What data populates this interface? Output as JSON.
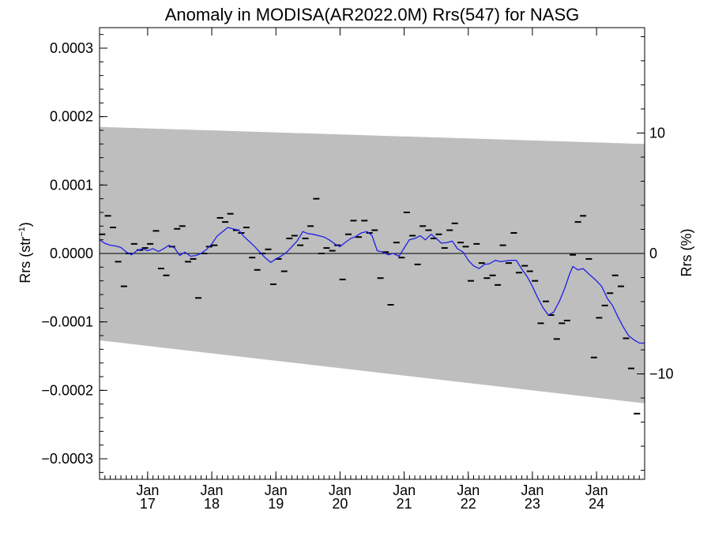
{
  "chart_data": {
    "type": "scatter",
    "title": "Anomaly in MODISA(AR2022.0M) Rrs(547) for NASG",
    "ylabel_left": "Rrs (str",
    "ylabel_left_sup": "−1",
    "ylabel_left_close": ")",
    "ylabel_right": "Rrs (%)",
    "xlim": [
      2016.25,
      2024.75
    ],
    "ylim": [
      -0.00033,
      0.00033
    ],
    "y2lim": [
      -18.75,
      18.75
    ],
    "grid": false,
    "x_ticks": [
      {
        "value": 2017.0,
        "month": "Jan",
        "year": "17"
      },
      {
        "value": 2018.0,
        "month": "Jan",
        "year": "18"
      },
      {
        "value": 2019.0,
        "month": "Jan",
        "year": "19"
      },
      {
        "value": 2020.0,
        "month": "Jan",
        "year": "20"
      },
      {
        "value": 2021.0,
        "month": "Jan",
        "year": "21"
      },
      {
        "value": 2022.0,
        "month": "Jan",
        "year": "22"
      },
      {
        "value": 2023.0,
        "month": "Jan",
        "year": "23"
      },
      {
        "value": 2024.0,
        "month": "Jan",
        "year": "24"
      }
    ],
    "y_ticks": [
      {
        "value": 0.0003,
        "label": "0.0003"
      },
      {
        "value": 0.0002,
        "label": "0.0002"
      },
      {
        "value": 0.0001,
        "label": "0.0001"
      },
      {
        "value": 0.0,
        "label": "0.0000"
      },
      {
        "value": -0.0001,
        "label": "−0.0001"
      },
      {
        "value": -0.0002,
        "label": "−0.0002"
      },
      {
        "value": -0.0003,
        "label": "−0.0003"
      }
    ],
    "y2_ticks": [
      {
        "value": 10,
        "label": "10"
      },
      {
        "value": 0,
        "label": "0"
      },
      {
        "value": -10,
        "label": "−10"
      }
    ],
    "band": {
      "color": "#bebebe",
      "x": [
        2016.25,
        2024.75
      ],
      "upper": [
        0.000185,
        0.00016
      ],
      "lower": [
        -0.000127,
        -0.000219
      ]
    },
    "zero_line": 0,
    "series": [
      {
        "kind": "monthly_anomaly",
        "marker": "dash",
        "color": "#000000",
        "points": [
          [
            2016.29,
            2.8e-05
          ],
          [
            2016.38,
            5.5e-05
          ],
          [
            2016.46,
            3.8e-05
          ],
          [
            2016.54,
            -1.2e-05
          ],
          [
            2016.63,
            -4.8e-05
          ],
          [
            2016.71,
            0.0
          ],
          [
            2016.79,
            1.4e-05
          ],
          [
            2016.88,
            5e-06
          ],
          [
            2016.96,
            8e-06
          ],
          [
            2017.04,
            1.4e-05
          ],
          [
            2017.13,
            3.3e-05
          ],
          [
            2017.21,
            -2.2e-05
          ],
          [
            2017.29,
            -3.2e-05
          ],
          [
            2017.38,
            1e-05
          ],
          [
            2017.46,
            3.6e-05
          ],
          [
            2017.54,
            4e-05
          ],
          [
            2017.63,
            -1.2e-05
          ],
          [
            2017.71,
            -8e-06
          ],
          [
            2017.79,
            -6.5e-05
          ],
          [
            2017.88,
            0.0
          ],
          [
            2017.96,
            1e-05
          ],
          [
            2018.04,
            1.2e-05
          ],
          [
            2018.13,
            5.2e-05
          ],
          [
            2018.21,
            4.6e-05
          ],
          [
            2018.29,
            5.8e-05
          ],
          [
            2018.38,
            3.4e-05
          ],
          [
            2018.46,
            3e-05
          ],
          [
            2018.54,
            3.8e-05
          ],
          [
            2018.63,
            -6e-06
          ],
          [
            2018.71,
            -2.4e-05
          ],
          [
            2018.79,
            0.0
          ],
          [
            2018.88,
            6e-06
          ],
          [
            2018.96,
            -4.5e-05
          ],
          [
            2019.04,
            -8e-06
          ],
          [
            2019.13,
            -2.6e-05
          ],
          [
            2019.21,
            2.2e-05
          ],
          [
            2019.29,
            2.6e-05
          ],
          [
            2019.38,
            1.2e-05
          ],
          [
            2019.46,
            2.2e-05
          ],
          [
            2019.54,
            4e-05
          ],
          [
            2019.63,
            8e-05
          ],
          [
            2019.71,
            0.0
          ],
          [
            2019.79,
            8e-06
          ],
          [
            2019.88,
            4e-06
          ],
          [
            2019.96,
            1.2e-05
          ],
          [
            2020.04,
            -3.8e-05
          ],
          [
            2020.13,
            2.8e-05
          ],
          [
            2020.21,
            4.8e-05
          ],
          [
            2020.29,
            2.4e-05
          ],
          [
            2020.38,
            4.8e-05
          ],
          [
            2020.46,
            3e-05
          ],
          [
            2020.54,
            3.4e-05
          ],
          [
            2020.63,
            -3.6e-05
          ],
          [
            2020.71,
            2e-06
          ],
          [
            2020.79,
            -7.5e-05
          ],
          [
            2020.88,
            1.6e-05
          ],
          [
            2020.96,
            -6e-06
          ],
          [
            2021.04,
            6e-05
          ],
          [
            2021.13,
            2.6e-05
          ],
          [
            2021.21,
            -1.6e-05
          ],
          [
            2021.29,
            4e-05
          ],
          [
            2021.38,
            3.4e-05
          ],
          [
            2021.46,
            2.2e-05
          ],
          [
            2021.54,
            2.8e-05
          ],
          [
            2021.63,
            8e-06
          ],
          [
            2021.71,
            3.4e-05
          ],
          [
            2021.79,
            4.4e-05
          ],
          [
            2021.88,
            1.6e-05
          ],
          [
            2021.96,
            1e-05
          ],
          [
            2022.04,
            -4e-05
          ],
          [
            2022.13,
            1.4e-05
          ],
          [
            2022.21,
            -1.4e-05
          ],
          [
            2022.29,
            -3.6e-05
          ],
          [
            2022.38,
            -3.2e-05
          ],
          [
            2022.46,
            -4.6e-05
          ],
          [
            2022.54,
            1.2e-05
          ],
          [
            2022.63,
            -1.4e-05
          ],
          [
            2022.71,
            3e-05
          ],
          [
            2022.79,
            -2.8e-05
          ],
          [
            2022.88,
            -1.8e-05
          ],
          [
            2022.96,
            -2.6e-05
          ],
          [
            2023.04,
            -4e-05
          ],
          [
            2023.13,
            -0.000102
          ],
          [
            2023.21,
            -7e-05
          ],
          [
            2023.29,
            -9e-05
          ],
          [
            2023.38,
            -0.000125
          ],
          [
            2023.46,
            -0.000102
          ],
          [
            2023.54,
            -9.8e-05
          ],
          [
            2023.63,
            -2e-06
          ],
          [
            2023.71,
            4.6e-05
          ],
          [
            2023.79,
            5.5e-05
          ],
          [
            2023.88,
            -8e-06
          ],
          [
            2023.96,
            -0.000152
          ],
          [
            2024.04,
            -9.4e-05
          ],
          [
            2024.13,
            -7.6e-05
          ],
          [
            2024.21,
            -5.8e-05
          ],
          [
            2024.29,
            -3.2e-05
          ],
          [
            2024.38,
            -4.8e-05
          ],
          [
            2024.46,
            -0.000124
          ],
          [
            2024.54,
            -0.000168
          ],
          [
            2024.63,
            -0.000234
          ]
        ]
      },
      {
        "kind": "running_mean",
        "marker": "line",
        "color": "#1f1fe6",
        "points": [
          [
            2016.25,
            2e-05
          ],
          [
            2016.33,
            1.5e-05
          ],
          [
            2016.42,
            1.2e-05
          ],
          [
            2016.5,
            1.1e-05
          ],
          [
            2016.58,
            9e-06
          ],
          [
            2016.67,
            2e-06
          ],
          [
            2016.75,
            -2e-06
          ],
          [
            2016.83,
            4e-06
          ],
          [
            2016.92,
            7e-06
          ],
          [
            2017.0,
            4e-06
          ],
          [
            2017.08,
            7e-06
          ],
          [
            2017.17,
            3e-06
          ],
          [
            2017.25,
            7e-06
          ],
          [
            2017.33,
            1.2e-05
          ],
          [
            2017.42,
            8e-06
          ],
          [
            2017.5,
            -3e-06
          ],
          [
            2017.58,
            2e-06
          ],
          [
            2017.67,
            -4e-06
          ],
          [
            2017.75,
            -3e-06
          ],
          [
            2017.83,
            0.0
          ],
          [
            2017.92,
            6e-06
          ],
          [
            2018.0,
            1.4e-05
          ],
          [
            2018.08,
            2.5e-05
          ],
          [
            2018.17,
            3.2e-05
          ],
          [
            2018.25,
            3.8e-05
          ],
          [
            2018.33,
            3.6e-05
          ],
          [
            2018.42,
            3.4e-05
          ],
          [
            2018.5,
            2.5e-05
          ],
          [
            2018.58,
            1.8e-05
          ],
          [
            2018.67,
            1e-05
          ],
          [
            2018.75,
            2e-06
          ],
          [
            2018.83,
            -6e-06
          ],
          [
            2018.92,
            -1.3e-05
          ],
          [
            2019.0,
            -8e-06
          ],
          [
            2019.08,
            -4e-06
          ],
          [
            2019.17,
            2e-06
          ],
          [
            2019.25,
            1e-05
          ],
          [
            2019.33,
            1.8e-05
          ],
          [
            2019.42,
            3.2e-05
          ],
          [
            2019.5,
            2.9e-05
          ],
          [
            2019.58,
            2.8e-05
          ],
          [
            2019.67,
            2.6e-05
          ],
          [
            2019.75,
            2.4e-05
          ],
          [
            2019.83,
            2e-05
          ],
          [
            2019.92,
            1.4e-05
          ],
          [
            2020.0,
            1e-05
          ],
          [
            2020.08,
            1.6e-05
          ],
          [
            2020.17,
            2.2e-05
          ],
          [
            2020.25,
            2.5e-05
          ],
          [
            2020.33,
            3e-05
          ],
          [
            2020.42,
            3.2e-05
          ],
          [
            2020.5,
            2.6e-05
          ],
          [
            2020.58,
            4e-06
          ],
          [
            2020.67,
            2e-06
          ],
          [
            2020.75,
            -2e-06
          ],
          [
            2020.83,
            0.0
          ],
          [
            2020.92,
            -4e-06
          ],
          [
            2021.0,
            8e-06
          ],
          [
            2021.08,
            2e-05
          ],
          [
            2021.17,
            2.2e-05
          ],
          [
            2021.25,
            2.6e-05
          ],
          [
            2021.33,
            2e-05
          ],
          [
            2021.42,
            2.8e-05
          ],
          [
            2021.5,
            2.2e-05
          ],
          [
            2021.58,
            1.5e-05
          ],
          [
            2021.67,
            1.6e-05
          ],
          [
            2021.75,
            1.8e-05
          ],
          [
            2021.83,
            7e-06
          ],
          [
            2021.92,
            2e-06
          ],
          [
            2022.0,
            -1e-05
          ],
          [
            2022.08,
            -1.8e-05
          ],
          [
            2022.17,
            -2.2e-05
          ],
          [
            2022.25,
            -1.6e-05
          ],
          [
            2022.33,
            -1.5e-05
          ],
          [
            2022.42,
            -1e-05
          ],
          [
            2022.5,
            -1.2e-05
          ],
          [
            2022.58,
            -1.1e-05
          ],
          [
            2022.67,
            -1e-05
          ],
          [
            2022.75,
            -1e-05
          ],
          [
            2022.83,
            -2.2e-05
          ],
          [
            2022.92,
            -3.4e-05
          ],
          [
            2023.0,
            -4.8e-05
          ],
          [
            2023.08,
            -6.4e-05
          ],
          [
            2023.17,
            -8e-05
          ],
          [
            2023.25,
            -9e-05
          ],
          [
            2023.33,
            -8.6e-05
          ],
          [
            2023.42,
            -7e-05
          ],
          [
            2023.5,
            -5.2e-05
          ],
          [
            2023.58,
            -3e-05
          ],
          [
            2023.63,
            -1.9e-05
          ],
          [
            2023.71,
            -2.4e-05
          ],
          [
            2023.79,
            -2.2e-05
          ],
          [
            2023.88,
            -3e-05
          ],
          [
            2024.0,
            -4e-05
          ],
          [
            2024.08,
            -4.8e-05
          ],
          [
            2024.17,
            -6.6e-05
          ],
          [
            2024.25,
            -7.6e-05
          ],
          [
            2024.33,
            -9.2e-05
          ],
          [
            2024.42,
            -0.000108
          ],
          [
            2024.5,
            -0.00012
          ],
          [
            2024.58,
            -0.000126
          ],
          [
            2024.67,
            -0.000131
          ],
          [
            2024.75,
            -0.000131
          ]
        ]
      }
    ]
  }
}
